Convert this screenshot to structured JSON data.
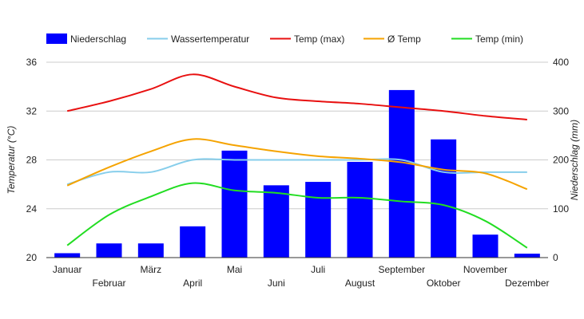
{
  "chart_data": {
    "type": "bar",
    "categories": [
      "Januar",
      "Februar",
      "März",
      "April",
      "Mai",
      "Juni",
      "Juli",
      "August",
      "September",
      "Oktober",
      "November",
      "Dezember"
    ],
    "left_axis": {
      "title": "Temperatur (°C)",
      "min": 20,
      "max": 36,
      "ticks": [
        20,
        24,
        28,
        32,
        36
      ]
    },
    "right_axis": {
      "title": "Niederschlag (mm)",
      "min": 0,
      "max": 400,
      "ticks": [
        0,
        100,
        200,
        300,
        400
      ]
    },
    "bar_series": {
      "name": "Niederschlag",
      "color": "#0000ff",
      "axis": "right",
      "values": [
        9,
        29,
        29,
        64,
        219,
        148,
        155,
        196,
        343,
        242,
        47,
        8
      ]
    },
    "line_series": [
      {
        "name": "Wassertemperatur",
        "color": "#87ceeb",
        "axis": "left",
        "values": [
          26,
          27,
          27,
          28,
          28,
          28,
          28,
          28,
          28,
          27,
          27,
          27
        ]
      },
      {
        "name": "Temp (max)",
        "color": "#e81010",
        "axis": "left",
        "values": [
          32,
          32.8,
          33.8,
          35,
          34,
          33.1,
          32.8,
          32.6,
          32.3,
          32,
          31.6,
          31.3
        ]
      },
      {
        "name": "Ø Temp",
        "color": "#f5a300",
        "axis": "left",
        "values": [
          25.9,
          27.4,
          28.7,
          29.7,
          29.2,
          28.7,
          28.3,
          28.1,
          27.8,
          27.2,
          26.9,
          25.6
        ]
      },
      {
        "name": "Temp (min)",
        "color": "#22dd22",
        "axis": "left",
        "values": [
          21,
          23.5,
          25,
          26.1,
          25.5,
          25.3,
          24.9,
          24.9,
          24.6,
          24.3,
          23,
          20.8
        ]
      }
    ],
    "legend": {
      "position": "top-left",
      "entries": [
        "Niederschlag",
        "Wassertemperatur",
        "Temp (max)",
        "Ø Temp",
        "Temp (min)"
      ]
    },
    "grid": true
  }
}
